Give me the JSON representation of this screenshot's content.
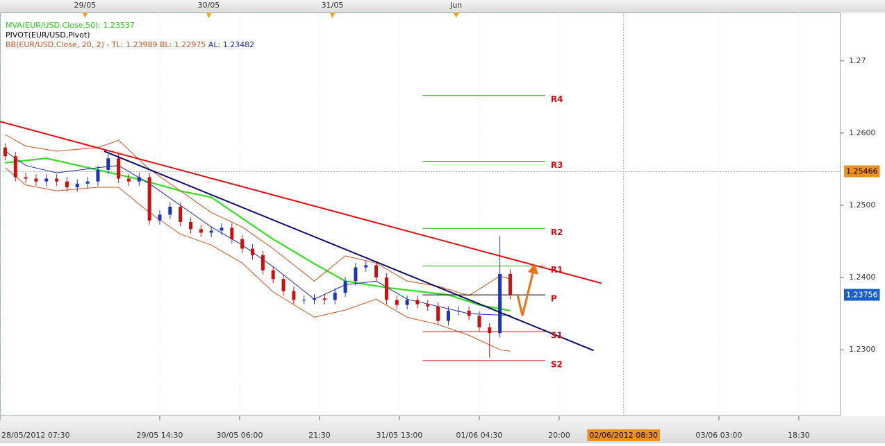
{
  "chart_data": {
    "type": "candlestick",
    "x": [
      1,
      3,
      5,
      7,
      9,
      11,
      13,
      15,
      17,
      19,
      21,
      23,
      25,
      27,
      29,
      31,
      33,
      35,
      37,
      39,
      41,
      43,
      45,
      47,
      49,
      51,
      53,
      55,
      57,
      59,
      61,
      63,
      65,
      67,
      69,
      71,
      73,
      75,
      77,
      79,
      81,
      83,
      85,
      87,
      89,
      91,
      93,
      95,
      97,
      99
    ],
    "open": [
      1.258,
      1.2568,
      1.2539,
      1.2537,
      1.2533,
      1.2537,
      1.2533,
      1.2525,
      1.253,
      1.2533,
      1.2549,
      1.2565,
      1.2537,
      1.2533,
      1.2539,
      1.2479,
      1.2487,
      1.2498,
      1.2477,
      1.2467,
      1.2462,
      1.2465,
      1.2469,
      1.2453,
      1.244,
      1.2431,
      1.241,
      1.2398,
      1.2381,
      1.2369,
      1.2369,
      1.2371,
      1.2369,
      1.2379,
      1.2395,
      1.2414,
      1.2417,
      1.24,
      1.2369,
      1.2362,
      1.2369,
      1.2363,
      1.236,
      1.234,
      1.2354,
      1.2354,
      1.2347,
      1.2331,
      1.2323,
      1.2405
    ],
    "high": [
      1.2586,
      1.2574,
      1.2545,
      1.2543,
      1.2543,
      1.2543,
      1.2539,
      1.2536,
      1.2539,
      1.2555,
      1.2571,
      1.2571,
      1.2543,
      1.2545,
      1.2545,
      1.2493,
      1.2504,
      1.2504,
      1.2483,
      1.2473,
      1.2471,
      1.2475,
      1.2475,
      1.2459,
      1.2446,
      1.2437,
      1.2416,
      1.2404,
      1.2387,
      1.2375,
      1.2377,
      1.2377,
      1.2385,
      1.2401,
      1.242,
      1.2423,
      1.2423,
      1.2406,
      1.2375,
      1.2375,
      1.2375,
      1.2369,
      1.2366,
      1.236,
      1.236,
      1.236,
      1.2353,
      1.2337,
      1.2458,
      1.2411
    ],
    "low": [
      1.2562,
      1.2533,
      1.2531,
      1.2527,
      1.2527,
      1.2527,
      1.2519,
      1.2519,
      1.2524,
      1.2527,
      1.2543,
      1.2531,
      1.2527,
      1.2527,
      1.2473,
      1.2473,
      1.2481,
      1.2471,
      1.2461,
      1.2456,
      1.2456,
      1.2459,
      1.2447,
      1.2434,
      1.2425,
      1.2404,
      1.2392,
      1.2375,
      1.2363,
      1.2363,
      1.2363,
      1.2363,
      1.2363,
      1.2373,
      1.2389,
      1.2408,
      1.2394,
      1.2363,
      1.2356,
      1.2356,
      1.2357,
      1.2354,
      1.2334,
      1.2334,
      1.2348,
      1.2341,
      1.2325,
      1.2289,
      1.2317,
      1.237
    ],
    "close": [
      1.2568,
      1.2539,
      1.2537,
      1.2533,
      1.2537,
      1.2533,
      1.2525,
      1.253,
      1.2533,
      1.2549,
      1.2565,
      1.2537,
      1.2533,
      1.2539,
      1.2479,
      1.2487,
      1.2498,
      1.2477,
      1.2467,
      1.2462,
      1.2465,
      1.2469,
      1.2453,
      1.244,
      1.2431,
      1.241,
      1.2398,
      1.2381,
      1.2369,
      1.2369,
      1.2371,
      1.2369,
      1.2379,
      1.2395,
      1.2414,
      1.2417,
      1.24,
      1.2369,
      1.2362,
      1.2369,
      1.2363,
      1.236,
      1.234,
      1.2354,
      1.2354,
      1.2347,
      1.2331,
      1.2323,
      1.2405,
      1.2376
    ],
    "up_color": "#1a35b8",
    "down_color": "#cc1010",
    "overlays": [
      {
        "color": "#33dd22",
        "width": 2.2,
        "x": [
          1,
          9,
          19,
          27,
          35,
          41,
          47,
          53,
          61,
          67,
          75,
          81,
          87,
          93,
          99
        ],
        "values": [
          1.2559,
          1.2565,
          1.2549,
          1.2536,
          1.252,
          1.2511,
          1.2482,
          1.2453,
          1.2419,
          1.2395,
          1.2386,
          1.2381,
          1.2376,
          1.2362,
          1.2354
        ]
      },
      {
        "color": "#c8501a",
        "width": 1,
        "x": [
          1,
          5,
          11,
          19,
          23,
          29,
          35,
          41,
          47,
          53,
          61,
          67,
          73,
          79,
          85,
          91,
          97,
          99
        ],
        "values": [
          1.2598,
          1.2582,
          1.2575,
          1.258,
          1.259,
          1.255,
          1.252,
          1.249,
          1.247,
          1.244,
          1.2395,
          1.243,
          1.242,
          1.2395,
          1.2388,
          1.2375,
          1.2402,
          1.2398
        ]
      },
      {
        "color": "#1a2ab0",
        "width": 1,
        "x": [
          1,
          5,
          11,
          19,
          23,
          29,
          35,
          41,
          47,
          53,
          61,
          67,
          73,
          79,
          85,
          91,
          97,
          99
        ],
        "values": [
          1.2575,
          1.2555,
          1.2545,
          1.2552,
          1.2555,
          1.253,
          1.25,
          1.247,
          1.2445,
          1.2415,
          1.237,
          1.239,
          1.2395,
          1.237,
          1.236,
          1.235,
          1.2348,
          1.2348
        ]
      },
      {
        "color": "#c8501a",
        "width": 1,
        "x": [
          1,
          5,
          11,
          19,
          23,
          29,
          35,
          41,
          47,
          53,
          61,
          67,
          73,
          79,
          85,
          91,
          97,
          99
        ],
        "values": [
          1.2552,
          1.2528,
          1.252,
          1.2525,
          1.2525,
          1.249,
          1.246,
          1.2445,
          1.242,
          1.238,
          1.2345,
          1.2355,
          1.237,
          1.2345,
          1.2335,
          1.232,
          1.23,
          1.2298
        ]
      }
    ],
    "trendlines": [
      {
        "color": "#e01010",
        "x": [
          0,
          116.7
        ],
        "values": [
          1.2616,
          1.2392
        ]
      },
      {
        "color": "#0a0a6e",
        "x": [
          20.2,
          115.2
        ],
        "values": [
          1.2575,
          1.2299
        ]
      }
    ],
    "pivots": {
      "x": [
        82,
        105.8
      ],
      "labels": [
        "R4",
        "R3",
        "R2",
        "R1",
        "P",
        "S1",
        "S2"
      ],
      "values": [
        1.2652,
        1.2561,
        1.2468,
        1.2416,
        1.2376,
        1.2325,
        1.2285
      ],
      "colors": [
        "#22aa11",
        "#22aa11",
        "#22aa11",
        "#22aa11",
        "#000000",
        "#cc1010",
        "#cc1010"
      ]
    },
    "legend": [
      [
        {
          "text": "MVA(EUR/USD.Close,50): 1.23537",
          "color": "#22cc11"
        }
      ],
      [
        {
          "text": "PIVOT(EUR/USD,Pivot)",
          "color": "#000000"
        }
      ],
      [
        {
          "text": "BB(EUR/USD.Close, 20, 2) -  TL: 1.23989  BL: 1.22975",
          "color": "#c8501a"
        },
        {
          "text": "  AL: 1.23482",
          "color": "#1a2ab0"
        }
      ]
    ],
    "xlim": [
      0,
      163.1
    ],
    "ylim": [
      1.2208,
      1.2767
    ],
    "xticks": [
      {
        "value": 0,
        "label": "28/05/2012 07:30"
      },
      {
        "value": 31,
        "label": "29/05 14:30"
      },
      {
        "value": 46.5,
        "label": "30/05 06:00"
      },
      {
        "value": 62,
        "label": "21:30"
      },
      {
        "value": 77.5,
        "label": "31/05 13:00"
      },
      {
        "value": 93,
        "label": "01/06 04:30"
      },
      {
        "value": 108.5,
        "label": "20:00"
      },
      {
        "value": 139.5,
        "label": "03/06 03:00"
      },
      {
        "value": 155,
        "label": "18:30"
      }
    ],
    "top_markers": [
      {
        "value": 16.5,
        "label": "29/05"
      },
      {
        "value": 40.5,
        "label": "30/05"
      },
      {
        "value": 64.5,
        "label": "31/05"
      },
      {
        "value": 88.5,
        "label": "Jun"
      }
    ],
    "yticks": [
      {
        "value": 1.23,
        "label": "1.2300"
      },
      {
        "value": 1.24,
        "label": "1.2400"
      },
      {
        "value": 1.25,
        "label": "1.2500"
      },
      {
        "value": 1.26,
        "label": "1.2600"
      },
      1.27
    ],
    "crosshair": {
      "x": {
        "value": 121,
        "label": "02/06/2012 08:30"
      },
      "y": 1.25466,
      "color": "#f0901a"
    },
    "last_price": 1.23756,
    "last_price_color": "#1a5fc8"
  }
}
